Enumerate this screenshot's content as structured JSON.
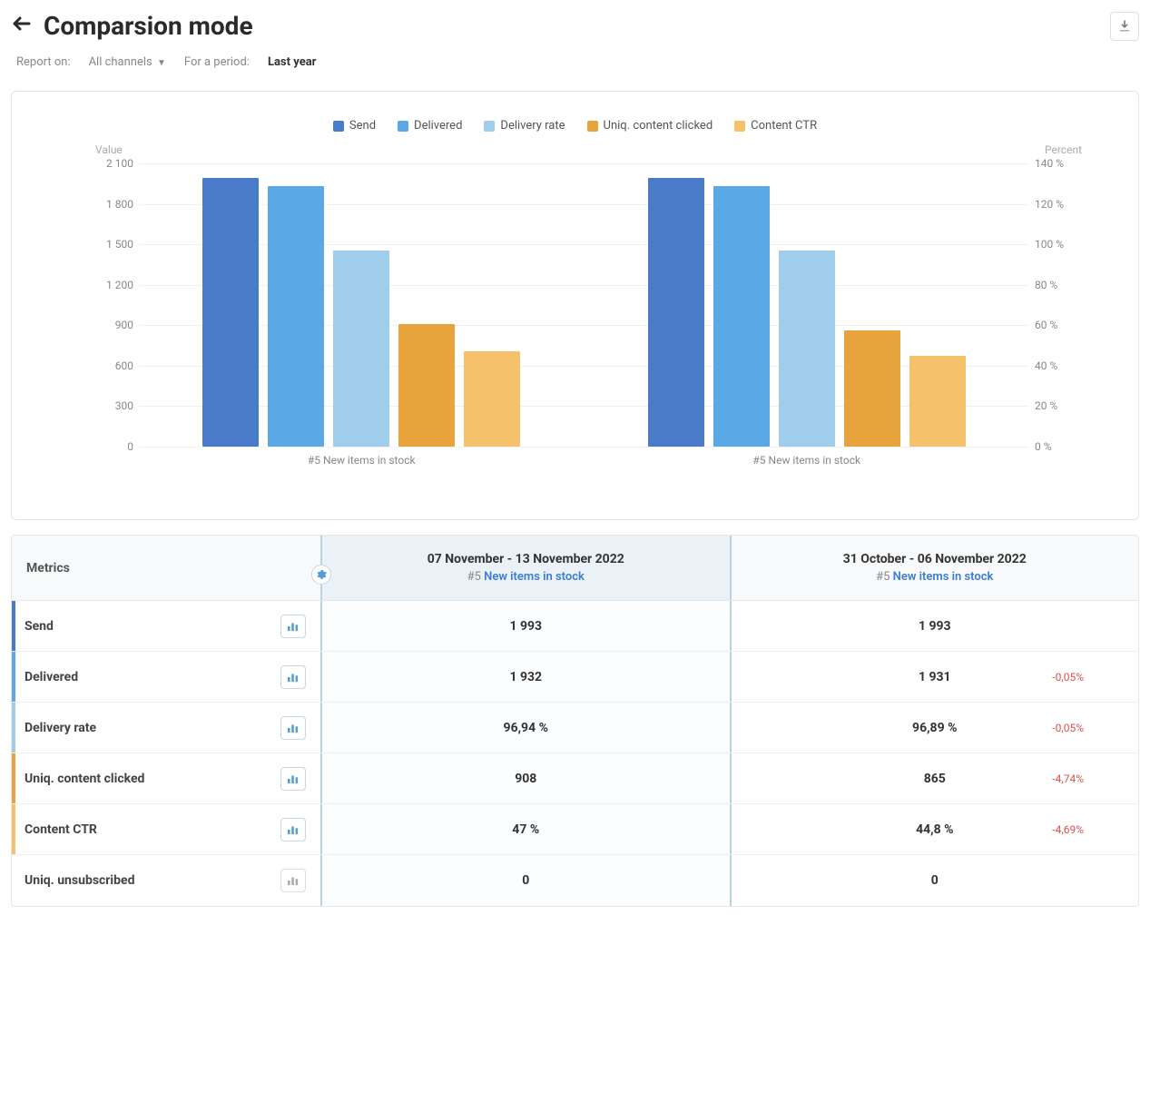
{
  "header": {
    "title": "Comparsion mode"
  },
  "filters": {
    "report_label": "Report on:",
    "report_value": "All channels",
    "period_label": "For a period:",
    "period_value": "Last year"
  },
  "chart": {
    "type": "bar",
    "legend": [
      {
        "label": "Send",
        "color": "#4a7bc8"
      },
      {
        "label": "Delivered",
        "color": "#5aa9e6"
      },
      {
        "label": "Delivery rate",
        "color": "#a0cdec"
      },
      {
        "label": "Uniq. content clicked",
        "color": "#e8a33d"
      },
      {
        "label": "Content CTR",
        "color": "#f5c26b"
      }
    ],
    "left_axis": {
      "label": "Value",
      "min": 0,
      "max": 2100,
      "ticks": [
        "0",
        "300",
        "600",
        "900",
        "1 200",
        "1 500",
        "1 800",
        "2 100"
      ]
    },
    "right_axis": {
      "label": "Percent",
      "min": 0,
      "max": 140,
      "ticks": [
        "0 %",
        "20 %",
        "40 %",
        "60 %",
        "80 %",
        "100 %",
        "120 %",
        "140 %"
      ]
    },
    "groups": [
      {
        "label": "#5 New items in stock",
        "bars": [
          {
            "value": 1993,
            "axis": "left",
            "color": "#4a7bc8"
          },
          {
            "value": 1932,
            "axis": "left",
            "color": "#5aa9e6"
          },
          {
            "value": 96.94,
            "axis": "right",
            "color": "#a0cdec"
          },
          {
            "value": 908,
            "axis": "left",
            "color": "#e8a33d"
          },
          {
            "value": 47,
            "axis": "right",
            "color": "#f5c26b"
          }
        ]
      },
      {
        "label": "#5 New items in stock",
        "bars": [
          {
            "value": 1993,
            "axis": "left",
            "color": "#4a7bc8"
          },
          {
            "value": 1931,
            "axis": "left",
            "color": "#5aa9e6"
          },
          {
            "value": 96.89,
            "axis": "right",
            "color": "#a0cdec"
          },
          {
            "value": 865,
            "axis": "left",
            "color": "#e8a33d"
          },
          {
            "value": 44.8,
            "axis": "right",
            "color": "#f5c26b"
          }
        ]
      }
    ],
    "grid_color": "#eef0f2",
    "background_color": "#ffffff"
  },
  "table": {
    "header": {
      "metrics_label": "Metrics",
      "periods": [
        {
          "date": "07 November - 13 November 2022",
          "prefix": "#5 ",
          "link": "New items in stock",
          "highlighted": true
        },
        {
          "date": "31 October - 06 November 2022",
          "prefix": "#5 ",
          "link": "New items in stock",
          "highlighted": false
        }
      ]
    },
    "rows": [
      {
        "metric": "Send",
        "color": "#4a7bc8",
        "active": true,
        "values": [
          "1 993",
          "1 993"
        ],
        "deltas": [
          null,
          null
        ]
      },
      {
        "metric": "Delivered",
        "color": "#5aa9e6",
        "active": true,
        "values": [
          "1 932",
          "1 931"
        ],
        "deltas": [
          null,
          "-0,05%"
        ]
      },
      {
        "metric": "Delivery rate",
        "color": "#a0cdec",
        "active": true,
        "values": [
          "96,94 %",
          "96,89 %"
        ],
        "deltas": [
          null,
          "-0,05%"
        ]
      },
      {
        "metric": "Uniq. content clicked",
        "color": "#e8a33d",
        "active": true,
        "values": [
          "908",
          "865"
        ],
        "deltas": [
          null,
          "-4,74%"
        ]
      },
      {
        "metric": "Content CTR",
        "color": "#f5c26b",
        "active": true,
        "values": [
          "47 %",
          "44,8 %"
        ],
        "deltas": [
          null,
          "-4,69%"
        ]
      },
      {
        "metric": "Uniq. unsubscribed",
        "color": "transparent",
        "active": false,
        "values": [
          "0",
          "0"
        ],
        "deltas": [
          null,
          null
        ]
      }
    ]
  }
}
